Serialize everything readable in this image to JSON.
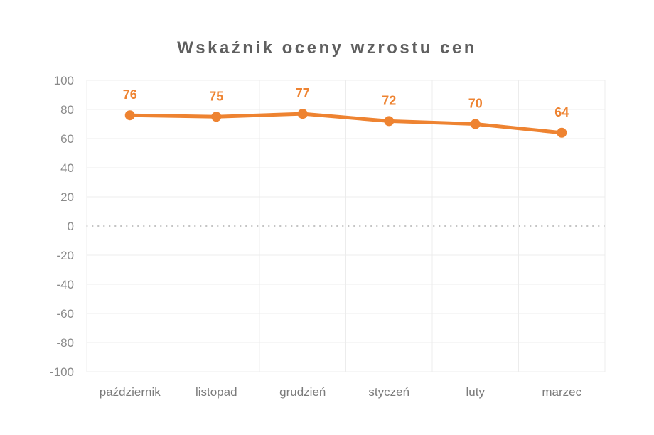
{
  "title": "Wskaźnik oceny wzrostu cen",
  "colors": {
    "series": "#EE8331",
    "data_label": "#EE8331",
    "title_text": "#5F5F5F",
    "axis_text": "#8A8A8A",
    "gridline": "#ECECEC",
    "zero_line": "#C2C2C2",
    "background": "#FFFFFF"
  },
  "chart_data": {
    "type": "line",
    "title": "Wskaźnik oceny wzrostu cen",
    "categories": [
      "październik",
      "listopad",
      "grudzień",
      "styczeń",
      "luty",
      "marzec"
    ],
    "series": [
      {
        "name": "Wskaźnik oceny wzrostu cen",
        "values": [
          76,
          75,
          77,
          72,
          70,
          64
        ]
      }
    ],
    "data_labels": [
      76,
      75,
      77,
      72,
      70,
      64
    ],
    "xlabel": "",
    "ylabel": "",
    "ylim": [
      -100,
      100
    ],
    "ytick_step": 20,
    "ytick_labels": [
      "100",
      "80",
      "60",
      "40",
      "20",
      "0",
      "-20",
      "-40",
      "-60",
      "-80",
      "-100"
    ],
    "grid": true,
    "zero_line": "dotted",
    "legend_position": "none",
    "marker": "circle"
  }
}
